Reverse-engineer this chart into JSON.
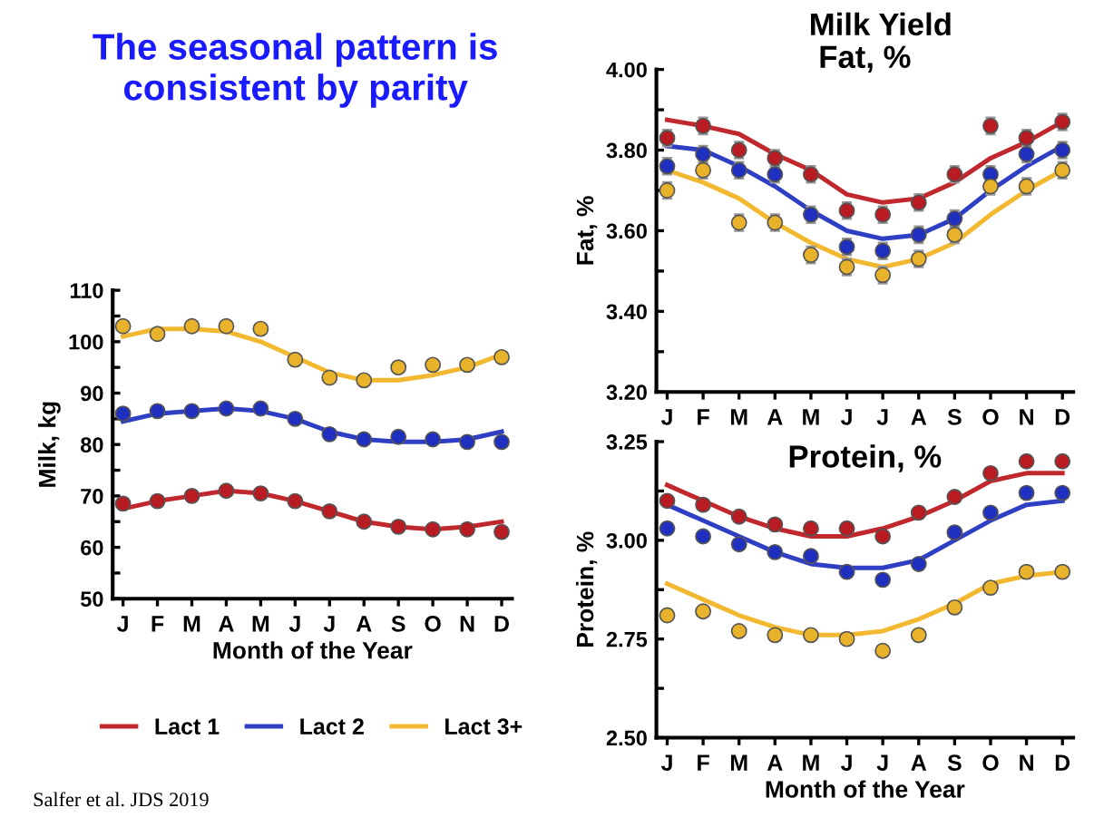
{
  "chart_data": [
    {
      "type": "line",
      "title": "The seasonal pattern is consistent by parity",
      "annotations": [
        "Milk Yield",
        "Salfer et al. JDS 2019"
      ],
      "xlabel": "Month of the Year",
      "ylabel": "Milk, kg",
      "categories": [
        "J",
        "F",
        "M",
        "A",
        "M",
        "J",
        "J",
        "A",
        "S",
        "O",
        "N",
        "D"
      ],
      "ylim": [
        50,
        110
      ],
      "yticks": [
        50,
        {
          "value": 55,
          "label": null
        },
        60,
        {
          "value": 65,
          "label": null
        },
        70,
        {
          "value": 75,
          "label": null
        },
        80,
        {
          "value": 85,
          "label": null
        },
        90,
        {
          "value": 95,
          "label": null
        },
        100,
        {
          "value": 105,
          "label": null
        },
        110
      ],
      "legend": "bottom",
      "grid": false,
      "series": [
        {
          "name": "Lact 1",
          "type": "line",
          "marker": "none",
          "color": "#c0282d",
          "values": [
            67.5,
            69,
            70,
            71,
            70.5,
            69,
            67,
            65,
            64,
            63.5,
            64,
            65
          ]
        },
        {
          "name": "Lact 2",
          "type": "line",
          "marker": "none",
          "color": "#2f3fc4",
          "values": [
            84.5,
            86,
            86.5,
            87,
            86.5,
            85,
            82.5,
            81,
            80.5,
            80.5,
            81,
            82.5
          ]
        },
        {
          "name": "Lact 3+",
          "type": "line",
          "marker": "none",
          "color": "#f2b830",
          "values": [
            101,
            102.5,
            102.5,
            102,
            100,
            97,
            94,
            92.5,
            92.5,
            93.5,
            95,
            97.5
          ]
        },
        {
          "type": "scatter",
          "marker": "circle",
          "color": "#b81c22",
          "values": [
            68.5,
            69,
            70,
            71,
            70.5,
            69,
            67,
            65,
            64,
            63.5,
            63.5,
            63
          ]
        },
        {
          "type": "scatter",
          "marker": "circle",
          "color": "#1f2fbf",
          "values": [
            86,
            86.5,
            86.5,
            87,
            87,
            85,
            82,
            81,
            81.5,
            81,
            80.5,
            80.5
          ]
        },
        {
          "type": "scatter",
          "marker": "circle",
          "color": "#e8b22a",
          "values": [
            103,
            101.5,
            103,
            103,
            102.5,
            96.5,
            93,
            92.5,
            95,
            95.5,
            95.5,
            97
          ]
        }
      ]
    },
    {
      "type": "line",
      "title": "Fat, %",
      "ylabel": "Fat, %",
      "categories": [
        "J",
        "F",
        "M",
        "A",
        "M",
        "J",
        "J",
        "A",
        "S",
        "O",
        "N",
        "D"
      ],
      "ylim": [
        3.2,
        4.0
      ],
      "yticks": [
        {
          "value": 3.2,
          "label": "3.20"
        },
        {
          "value": 3.3,
          "label": null
        },
        {
          "value": 3.4,
          "label": "3.40"
        },
        {
          "value": 3.5,
          "label": null
        },
        {
          "value": 3.6,
          "label": "3.60"
        },
        {
          "value": 3.7,
          "label": null
        },
        {
          "value": 3.8,
          "label": "3.80"
        },
        {
          "value": 3.9,
          "label": null
        },
        {
          "value": 4.0,
          "label": "4.00"
        }
      ],
      "grid": false,
      "series": [
        {
          "type": "line",
          "marker": "none",
          "color": "#c0282d",
          "values": [
            3.875,
            3.86,
            3.84,
            3.79,
            3.75,
            3.69,
            3.67,
            3.68,
            3.72,
            3.78,
            3.82,
            3.87
          ]
        },
        {
          "type": "line",
          "marker": "none",
          "color": "#2f3fc4",
          "values": [
            3.81,
            3.8,
            3.76,
            3.71,
            3.65,
            3.6,
            3.58,
            3.59,
            3.63,
            3.7,
            3.76,
            3.81
          ]
        },
        {
          "type": "line",
          "marker": "none",
          "color": "#f2b830",
          "values": [
            3.75,
            3.72,
            3.68,
            3.62,
            3.57,
            3.53,
            3.51,
            3.53,
            3.57,
            3.64,
            3.7,
            3.75
          ]
        },
        {
          "type": "scatter",
          "marker": "circle",
          "color": "#b81c22",
          "errors": [
            0.02,
            0.02,
            0.02,
            0.02,
            0.02,
            0.02,
            0.02,
            0.02,
            0.02,
            0.02,
            0.02,
            0.02
          ],
          "values": [
            3.83,
            3.86,
            3.8,
            3.78,
            3.74,
            3.65,
            3.64,
            3.67,
            3.74,
            3.86,
            3.83,
            3.87
          ]
        },
        {
          "type": "scatter",
          "marker": "circle",
          "color": "#1f2fbf",
          "errors": [
            0.02,
            0.02,
            0.02,
            0.02,
            0.02,
            0.02,
            0.02,
            0.02,
            0.02,
            0.02,
            0.02,
            0.02
          ],
          "values": [
            3.76,
            3.79,
            3.75,
            3.74,
            3.64,
            3.56,
            3.55,
            3.59,
            3.63,
            3.74,
            3.79,
            3.8
          ]
        },
        {
          "type": "scatter",
          "marker": "circle",
          "color": "#e8b22a",
          "errors": [
            0.02,
            0.02,
            0.02,
            0.02,
            0.02,
            0.02,
            0.02,
            0.02,
            0.02,
            0.02,
            0.02,
            0.02
          ],
          "values": [
            3.7,
            3.75,
            3.62,
            3.62,
            3.54,
            3.51,
            3.49,
            3.53,
            3.59,
            3.71,
            3.71,
            3.75
          ]
        }
      ]
    },
    {
      "type": "line",
      "title": "Protein, %",
      "xlabel": "Month of the Year",
      "ylabel": "Protein, %",
      "categories": [
        "J",
        "F",
        "M",
        "A",
        "M",
        "J",
        "J",
        "A",
        "S",
        "O",
        "N",
        "D"
      ],
      "ylim": [
        2.5,
        3.25
      ],
      "yticks": [
        {
          "value": 2.5,
          "label": "2.50"
        },
        {
          "value": 2.625,
          "label": null
        },
        2.75,
        {
          "value": 2.875,
          "label": null
        },
        {
          "value": 3.0,
          "label": "3.00"
        },
        {
          "value": 3.125,
          "label": null
        },
        3.25
      ],
      "grid": false,
      "series": [
        {
          "type": "line",
          "marker": "none",
          "color": "#c0282d",
          "values": [
            3.14,
            3.1,
            3.06,
            3.03,
            3.01,
            3.01,
            3.03,
            3.06,
            3.1,
            3.15,
            3.17,
            3.17
          ]
        },
        {
          "type": "line",
          "marker": "none",
          "color": "#2f3fc4",
          "values": [
            3.09,
            3.05,
            3.01,
            2.97,
            2.94,
            2.93,
            2.93,
            2.95,
            3.0,
            3.05,
            3.09,
            3.1
          ]
        },
        {
          "type": "line",
          "marker": "none",
          "color": "#f2b830",
          "values": [
            2.89,
            2.85,
            2.81,
            2.78,
            2.76,
            2.76,
            2.77,
            2.8,
            2.84,
            2.89,
            2.91,
            2.92
          ]
        },
        {
          "type": "scatter",
          "marker": "circle",
          "color": "#b81c22",
          "values": [
            3.1,
            3.09,
            3.06,
            3.04,
            3.03,
            3.03,
            3.01,
            3.07,
            3.11,
            3.17,
            3.2,
            3.2
          ]
        },
        {
          "type": "scatter",
          "marker": "circle",
          "color": "#1f2fbf",
          "values": [
            3.03,
            3.01,
            2.99,
            2.97,
            2.96,
            2.92,
            2.9,
            2.94,
            3.02,
            3.07,
            3.12,
            3.12
          ]
        },
        {
          "type": "scatter",
          "marker": "circle",
          "color": "#e8b22a",
          "values": [
            2.81,
            2.82,
            2.77,
            2.76,
            2.76,
            2.75,
            2.72,
            2.76,
            2.83,
            2.88,
            2.92,
            2.92
          ]
        }
      ]
    }
  ]
}
